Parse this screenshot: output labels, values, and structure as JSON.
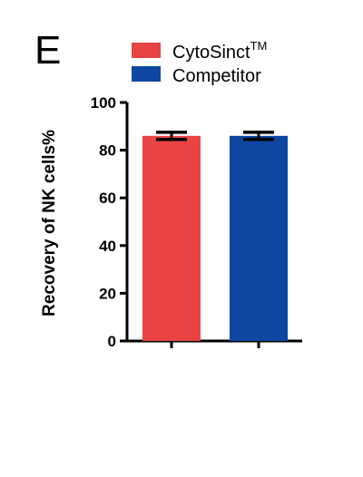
{
  "panel_label": "E",
  "legend": [
    {
      "label": "CytoSinct",
      "superscript": "TM",
      "color": "#e84444"
    },
    {
      "label": "Competitor",
      "superscript": "",
      "color": "#0d47a1"
    }
  ],
  "chart_data": {
    "type": "bar",
    "categories": [
      "CytoSinct™",
      "Competitor"
    ],
    "values": [
      86,
      86
    ],
    "errors": [
      1.5,
      1.5
    ],
    "colors": [
      "#e84444",
      "#0d47a1"
    ],
    "title": "",
    "xlabel": "",
    "ylabel": "Recovery of  NK  cells%",
    "ylim": [
      0,
      100
    ],
    "yticks": [
      0,
      20,
      40,
      60,
      80,
      100
    ],
    "grid": false,
    "legend_position": "top"
  }
}
